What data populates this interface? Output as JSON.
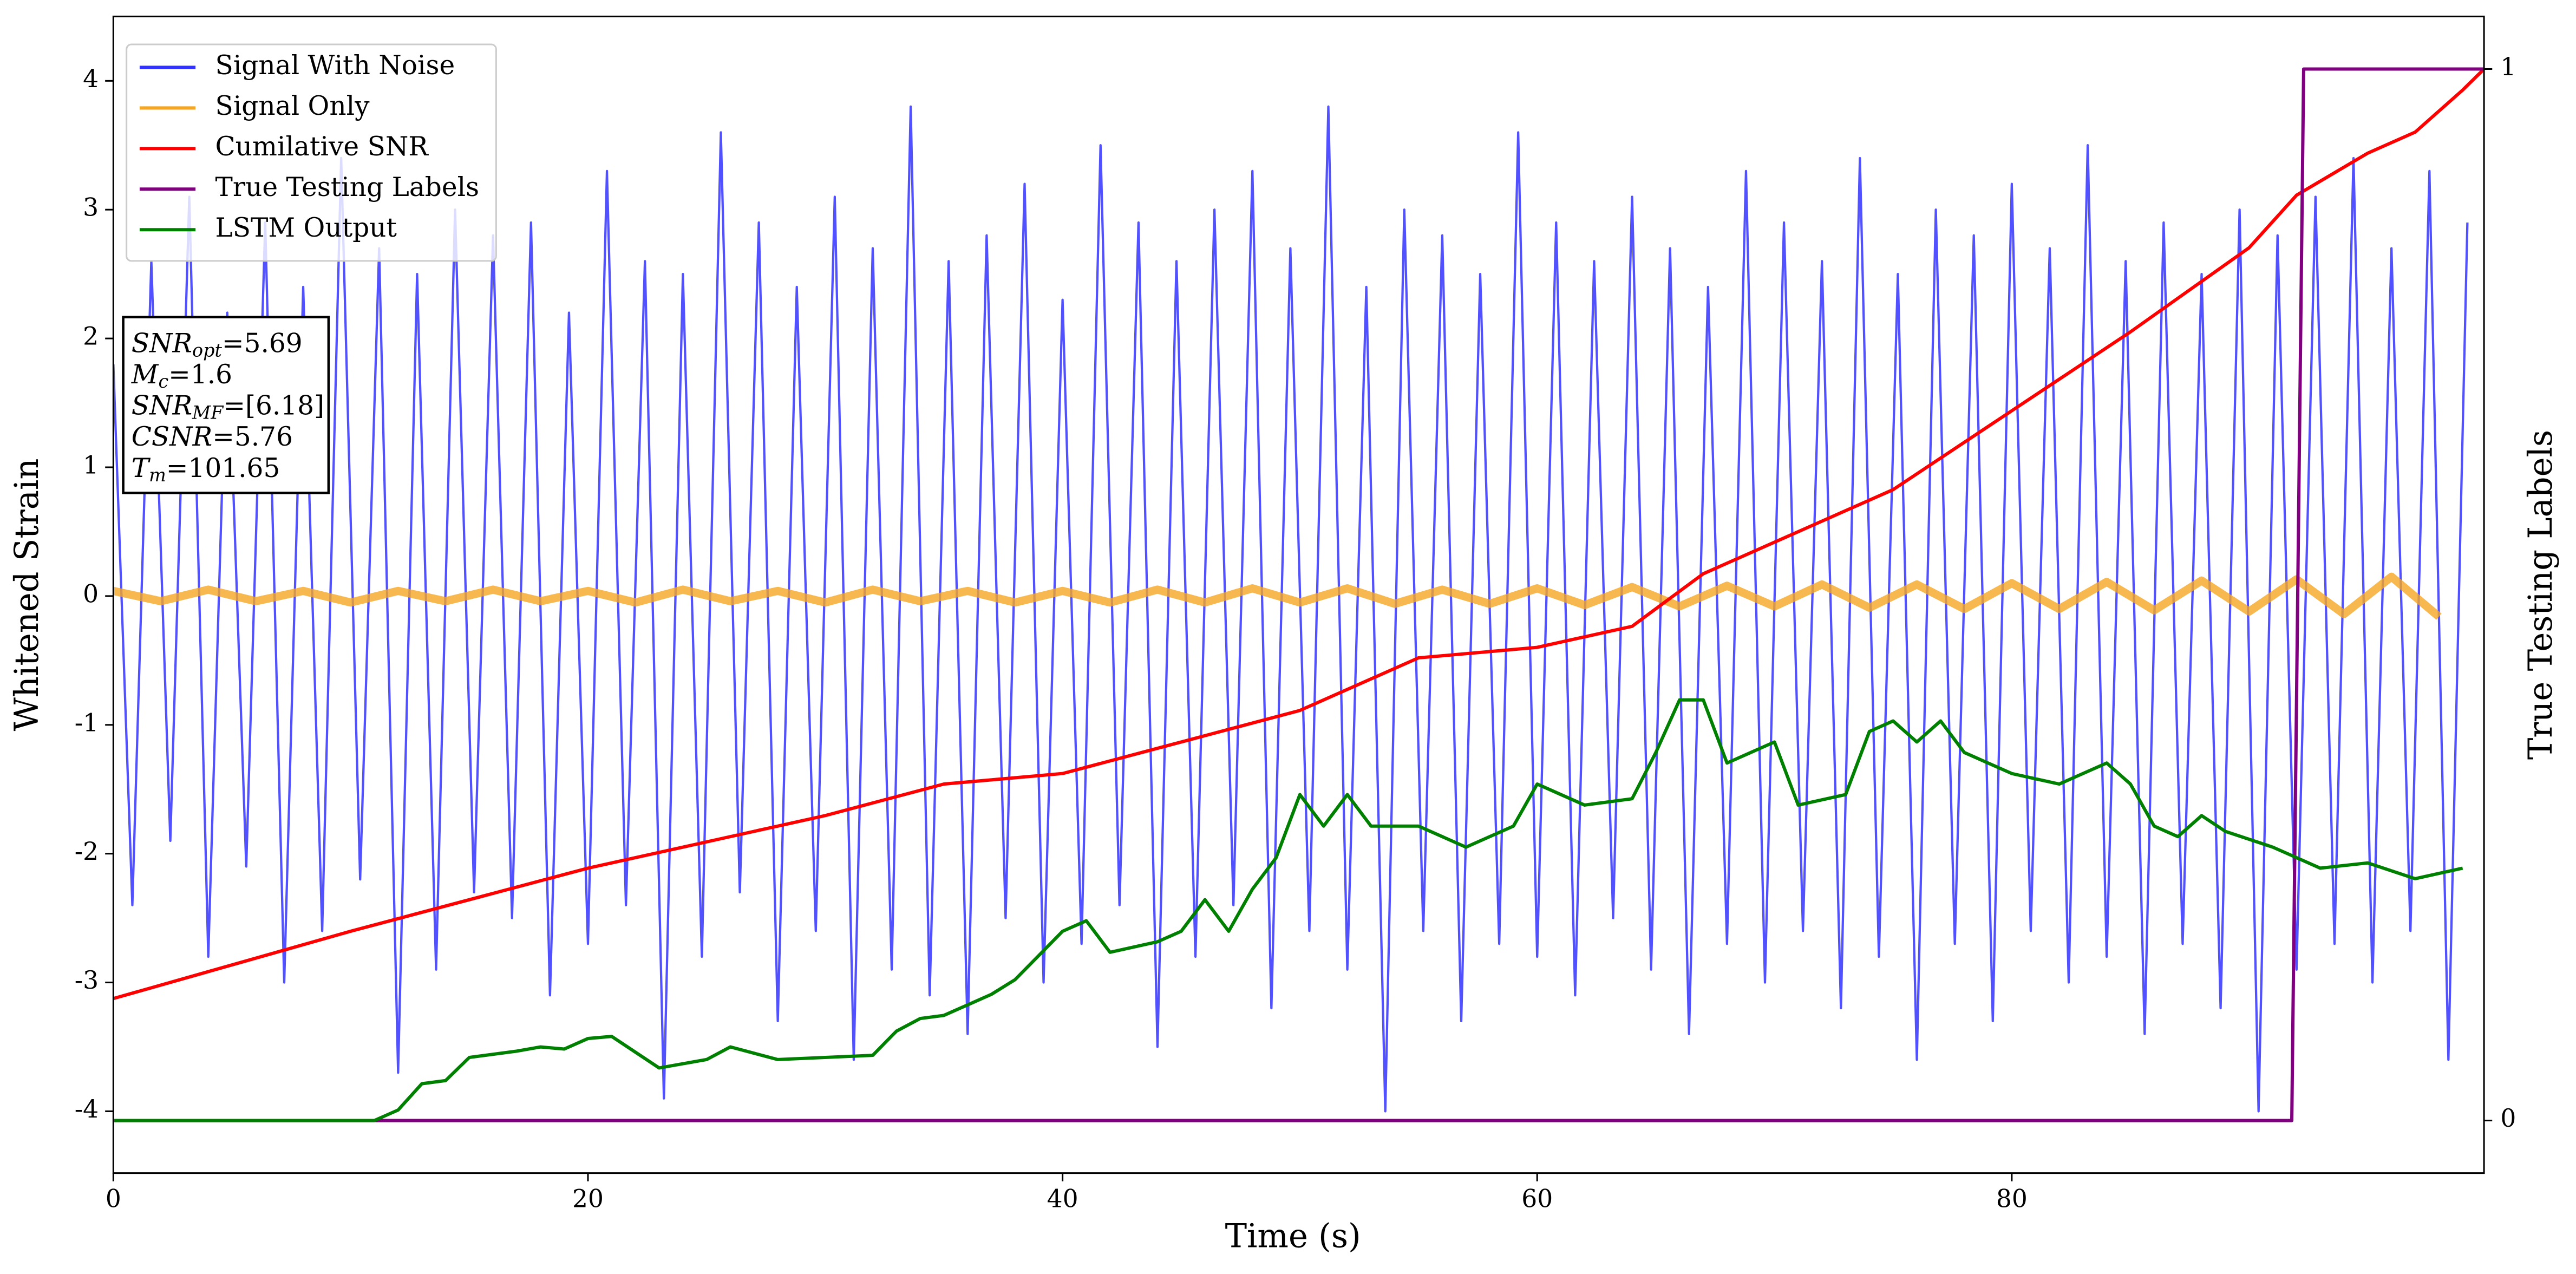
{
  "chart_data": {
    "type": "line",
    "x_label": "Time (s)",
    "y_label": "Whitened Strain",
    "y2_label": "True Testing Labels",
    "xlim": [
      0,
      99.9
    ],
    "xticks": [
      0,
      20,
      40,
      60,
      80
    ],
    "ylim": [
      -4.48,
      4.5
    ],
    "yticks": [
      -4,
      -3,
      -2,
      -1,
      0,
      1,
      2,
      3,
      4
    ],
    "y2lim": [
      -0.05,
      1.05
    ],
    "y2ticks": [
      0,
      1
    ],
    "grid": false,
    "legend": "upper left",
    "annotations": [
      {
        "main": "SNR",
        "sub": "opt",
        "rest": "=5.69"
      },
      {
        "main": "M",
        "sub": "c",
        "rest": "=1.6"
      },
      {
        "main": "SNR",
        "sub": "MF",
        "rest": "=[6.18]"
      },
      {
        "main": "CSNR",
        "sub": "",
        "rest": "=5.76"
      },
      {
        "main": "T",
        "sub": "m",
        "rest": "=101.65"
      }
    ],
    "series": [
      {
        "name": "Signal With Noise",
        "color": "#3333ff",
        "x": [
          0,
          0.8,
          1.6,
          2.4,
          3.2,
          4,
          4.8,
          5.6,
          6.4,
          7.2,
          8,
          8.8,
          9.6,
          10.4,
          11.2,
          12,
          12.8,
          13.6,
          14.4,
          15.2,
          16,
          16.8,
          17.6,
          18.4,
          19.2,
          20,
          20.8,
          21.6,
          22.4,
          23.2,
          24,
          24.8,
          25.6,
          26.4,
          27.2,
          28,
          28.8,
          29.6,
          30.4,
          31.2,
          32,
          32.8,
          33.6,
          34.4,
          35.2,
          36,
          36.8,
          37.6,
          38.4,
          39.2,
          40,
          40.8,
          41.6,
          42.4,
          43.2,
          44,
          44.8,
          45.6,
          46.4,
          47.2,
          48,
          48.8,
          49.6,
          50.4,
          51.2,
          52,
          52.8,
          53.6,
          54.4,
          55.2,
          56,
          56.8,
          57.6,
          58.4,
          59.2,
          60,
          60.8,
          61.6,
          62.4,
          63.2,
          64,
          64.8,
          65.6,
          66.4,
          67.2,
          68,
          68.8,
          69.6,
          70.4,
          71.2,
          72,
          72.8,
          73.6,
          74.4,
          75.2,
          76,
          76.8,
          77.6,
          78.4,
          79.2,
          80,
          80.8,
          81.6,
          82.4,
          83.2,
          84,
          84.8,
          85.6,
          86.4,
          87.2,
          88,
          88.8,
          89.6,
          90.4,
          91.2,
          92,
          92.8,
          93.6,
          94.4,
          95.2,
          96,
          96.8,
          97.6,
          98.4,
          99.2
        ],
        "values": [
          1.8,
          -2.4,
          2.6,
          -1.9,
          3.1,
          -2.8,
          2.2,
          -2.1,
          2.9,
          -3.0,
          2.4,
          -2.6,
          3.4,
          -2.2,
          2.7,
          -3.7,
          2.5,
          -2.9,
          3.0,
          -2.3,
          2.8,
          -2.5,
          2.9,
          -3.1,
          2.2,
          -2.7,
          3.3,
          -2.4,
          2.6,
          -3.9,
          2.5,
          -2.8,
          3.6,
          -2.3,
          2.9,
          -3.3,
          2.4,
          -2.6,
          3.1,
          -3.6,
          2.7,
          -2.9,
          3.8,
          -3.1,
          2.6,
          -3.4,
          2.8,
          -2.5,
          3.2,
          -3.0,
          2.3,
          -2.7,
          3.5,
          -2.4,
          2.9,
          -3.5,
          2.6,
          -2.8,
          3.0,
          -2.4,
          3.3,
          -3.2,
          2.7,
          -2.6,
          3.8,
          -2.9,
          2.4,
          -4.0,
          3.0,
          -2.6,
          2.8,
          -3.3,
          2.5,
          -2.7,
          3.6,
          -2.8,
          2.9,
          -3.1,
          2.6,
          -2.5,
          3.1,
          -2.9,
          2.7,
          -3.4,
          2.4,
          -2.7,
          3.3,
          -3.0,
          2.9,
          -2.6,
          2.6,
          -3.2,
          3.4,
          -2.8,
          2.5,
          -3.6,
          3.0,
          -2.7,
          2.8,
          -3.3,
          3.2,
          -2.6,
          2.7,
          -3.0,
          3.5,
          -2.8,
          2.6,
          -3.4,
          2.9,
          -2.7,
          2.5,
          -3.2,
          3.0,
          -4.0,
          2.8,
          -2.9,
          3.1,
          -2.7,
          3.4,
          -3.0,
          2.7,
          -2.6,
          3.3,
          -3.6,
          2.9
        ]
      },
      {
        "name": "Signal Only",
        "color": "#f5a623",
        "x": [
          0,
          2,
          4,
          6,
          8,
          10,
          12,
          14,
          16,
          18,
          20,
          22,
          24,
          26,
          28,
          30,
          32,
          34,
          36,
          38,
          40,
          42,
          44,
          46,
          48,
          50,
          52,
          54,
          56,
          58,
          60,
          62,
          64,
          66,
          68,
          70,
          72,
          74,
          76,
          78,
          80,
          82,
          84,
          86,
          88,
          90,
          92,
          94,
          96,
          98
        ],
        "values": [
          0.04,
          -0.04,
          0.05,
          -0.04,
          0.04,
          -0.05,
          0.04,
          -0.04,
          0.05,
          -0.04,
          0.04,
          -0.05,
          0.05,
          -0.04,
          0.04,
          -0.05,
          0.05,
          -0.04,
          0.04,
          -0.05,
          0.04,
          -0.05,
          0.05,
          -0.05,
          0.06,
          -0.05,
          0.06,
          -0.06,
          0.05,
          -0.06,
          0.06,
          -0.07,
          0.07,
          -0.08,
          0.08,
          -0.08,
          0.09,
          -0.09,
          0.09,
          -0.1,
          0.1,
          -0.1,
          0.11,
          -0.11,
          0.12,
          -0.12,
          0.13,
          -0.14,
          0.15,
          -0.16
        ]
      },
      {
        "name": "Cumilative SNR",
        "color": "#ff0000",
        "axis": "y2",
        "x": [
          0,
          10,
          20,
          30,
          35,
          40,
          45,
          50,
          55,
          60,
          64,
          67,
          70,
          75,
          80,
          85,
          90,
          92,
          95,
          97,
          99,
          99.9
        ],
        "values": [
          0.116,
          0.18,
          0.24,
          0.29,
          0.32,
          0.33,
          0.36,
          0.39,
          0.44,
          0.45,
          0.47,
          0.52,
          0.55,
          0.6,
          0.675,
          0.75,
          0.83,
          0.88,
          0.92,
          0.94,
          0.98,
          1.0
        ]
      },
      {
        "name": "True Testing Labels",
        "color": "#800080",
        "axis": "y2",
        "x": [
          0,
          91.8,
          92.3,
          99.9
        ],
        "values": [
          0,
          0,
          1,
          1
        ]
      },
      {
        "name": "LSTM Output",
        "color": "#008000",
        "axis": "y2",
        "x": [
          0,
          11,
          12,
          13,
          14,
          15,
          17,
          18,
          19,
          20,
          21,
          22,
          23,
          25,
          26,
          28,
          30,
          32,
          33,
          34,
          35,
          37,
          38,
          40,
          41,
          42,
          44,
          45,
          46,
          47,
          48,
          49,
          50,
          51,
          52,
          53,
          55,
          57,
          59,
          60,
          62,
          64,
          65,
          66,
          67,
          68,
          70,
          71,
          73,
          74,
          75,
          76,
          77,
          78,
          80,
          82,
          84,
          85,
          86,
          87,
          88,
          89,
          91,
          92,
          93,
          95,
          97,
          99
        ],
        "values": [
          0,
          0,
          0.01,
          0.035,
          0.038,
          0.06,
          0.066,
          0.07,
          0.068,
          0.078,
          0.08,
          0.065,
          0.05,
          0.058,
          0.07,
          0.058,
          0.06,
          0.062,
          0.085,
          0.097,
          0.1,
          0.12,
          0.134,
          0.18,
          0.19,
          0.16,
          0.17,
          0.18,
          0.21,
          0.18,
          0.22,
          0.25,
          0.31,
          0.28,
          0.31,
          0.28,
          0.28,
          0.26,
          0.28,
          0.32,
          0.3,
          0.306,
          0.35,
          0.4,
          0.4,
          0.34,
          0.36,
          0.3,
          0.31,
          0.37,
          0.38,
          0.36,
          0.38,
          0.35,
          0.33,
          0.32,
          0.34,
          0.32,
          0.28,
          0.27,
          0.29,
          0.275,
          0.26,
          0.25,
          0.24,
          0.245,
          0.23,
          0.24
        ]
      }
    ]
  }
}
